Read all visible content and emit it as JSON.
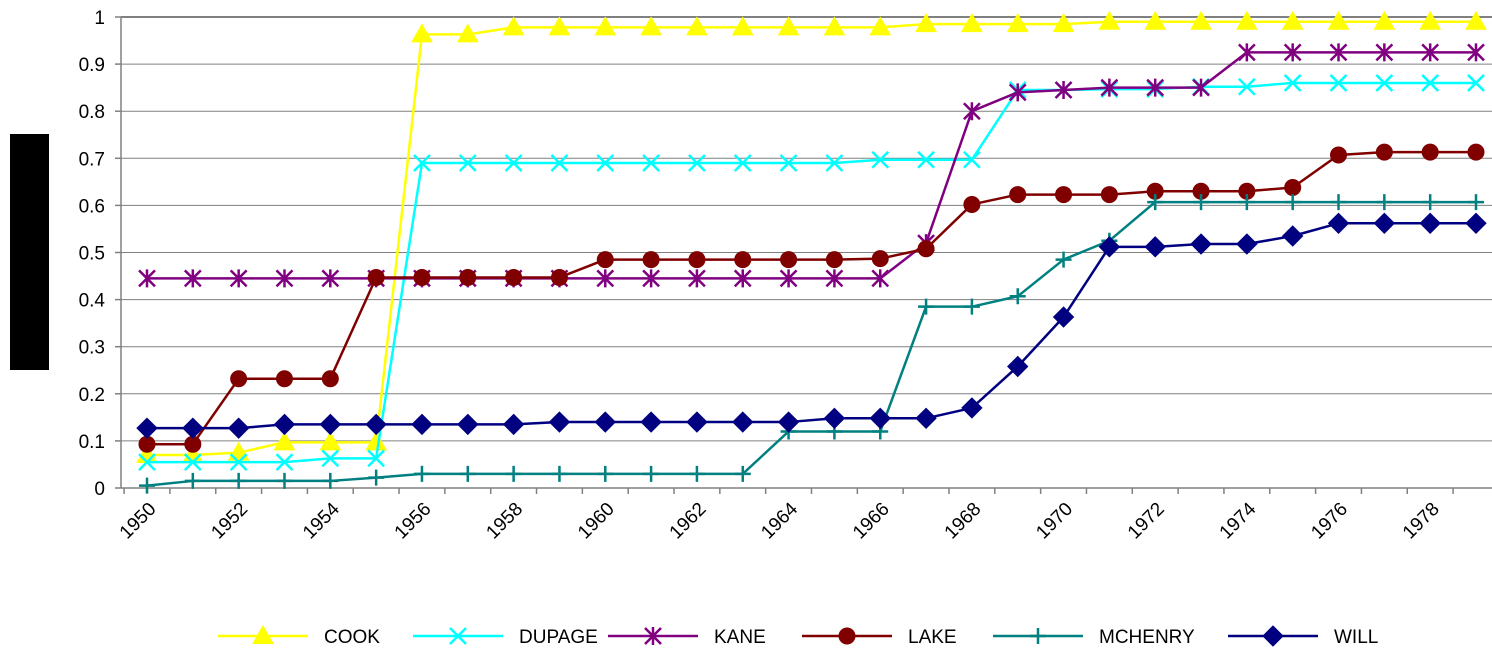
{
  "chart_data": {
    "type": "line",
    "title": "",
    "xlabel": "",
    "ylabel": "",
    "ylim": [
      0,
      1
    ],
    "y_ticks": [
      "0",
      "0.1",
      "0.2",
      "0.3",
      "0.4",
      "0.5",
      "0.6",
      "0.7",
      "0.8",
      "0.9",
      "1"
    ],
    "x": [
      1950,
      1951,
      1952,
      1953,
      1954,
      1955,
      1956,
      1957,
      1958,
      1959,
      1960,
      1961,
      1962,
      1963,
      1964,
      1965,
      1966,
      1967,
      1968,
      1969,
      1970,
      1971,
      1972,
      1973,
      1974,
      1975,
      1976,
      1977,
      1978,
      1979
    ],
    "x_tick_labels": [
      "1950",
      "1952",
      "1954",
      "1956",
      "1958",
      "1960",
      "1962",
      "1964",
      "1966",
      "1968",
      "1970",
      "1972",
      "1974",
      "1976",
      "1978"
    ],
    "grid": "horizontal",
    "legend_position": "bottom",
    "series": [
      {
        "name": "COOK",
        "color": "#FFFF00",
        "marker": "triangle",
        "values": [
          0.07,
          0.07,
          0.075,
          0.097,
          0.097,
          0.097,
          0.963,
          0.963,
          0.978,
          0.978,
          0.978,
          0.978,
          0.978,
          0.978,
          0.978,
          0.978,
          0.978,
          0.985,
          0.985,
          0.985,
          0.985,
          0.99,
          0.99,
          0.99,
          0.99,
          0.99,
          0.99,
          0.99,
          0.99,
          0.99
        ]
      },
      {
        "name": "DUPAGE",
        "color": "#00FFFF",
        "marker": "x",
        "values": [
          0.055,
          0.055,
          0.055,
          0.055,
          0.063,
          0.063,
          0.69,
          0.69,
          0.69,
          0.69,
          0.69,
          0.69,
          0.69,
          0.69,
          0.69,
          0.69,
          0.697,
          0.697,
          0.697,
          0.845,
          0.845,
          0.847,
          0.847,
          0.852,
          0.852,
          0.86,
          0.86,
          0.86,
          0.86,
          0.86
        ]
      },
      {
        "name": "KANE",
        "color": "#800080",
        "marker": "asterisk",
        "values": [
          0.445,
          0.445,
          0.445,
          0.445,
          0.445,
          0.445,
          0.445,
          0.445,
          0.445,
          0.445,
          0.445,
          0.445,
          0.445,
          0.445,
          0.445,
          0.445,
          0.445,
          0.52,
          0.8,
          0.84,
          0.845,
          0.85,
          0.85,
          0.85,
          0.925,
          0.925,
          0.925,
          0.925,
          0.925,
          0.925
        ]
      },
      {
        "name": "LAKE",
        "color": "#800000",
        "marker": "circle",
        "values": [
          0.093,
          0.093,
          0.232,
          0.232,
          0.232,
          0.447,
          0.447,
          0.447,
          0.447,
          0.447,
          0.485,
          0.485,
          0.485,
          0.485,
          0.485,
          0.485,
          0.487,
          0.508,
          0.602,
          0.623,
          0.623,
          0.623,
          0.63,
          0.63,
          0.63,
          0.638,
          0.707,
          0.713,
          0.713,
          0.713
        ]
      },
      {
        "name": "MCHENRY",
        "color": "#008080",
        "marker": "plus",
        "values": [
          0.005,
          0.015,
          0.015,
          0.015,
          0.015,
          0.022,
          0.03,
          0.03,
          0.03,
          0.03,
          0.03,
          0.03,
          0.03,
          0.03,
          0.12,
          0.12,
          0.12,
          0.385,
          0.385,
          0.407,
          0.485,
          0.525,
          0.607,
          0.607,
          0.607,
          0.607,
          0.607,
          0.607,
          0.607,
          0.607
        ]
      },
      {
        "name": "WILL",
        "color": "#000080",
        "marker": "diamond",
        "values": [
          0.127,
          0.127,
          0.127,
          0.135,
          0.135,
          0.135,
          0.135,
          0.135,
          0.135,
          0.14,
          0.14,
          0.14,
          0.14,
          0.14,
          0.14,
          0.148,
          0.148,
          0.148,
          0.17,
          0.258,
          0.363,
          0.512,
          0.512,
          0.518,
          0.518,
          0.535,
          0.562,
          0.562,
          0.562,
          0.562
        ]
      }
    ]
  }
}
